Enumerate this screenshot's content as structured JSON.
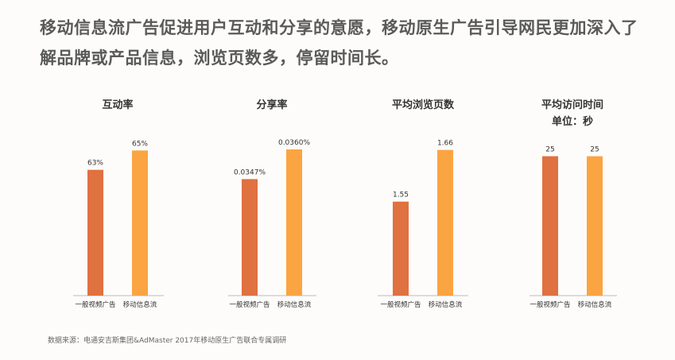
{
  "headline": "移动信息流广告促进用户互动和分享的意愿，移动原生广告引导网民更加深入了解品牌或产品信息，浏览页数多，停留时间长。",
  "source": "数据来源：电通安吉斯集团&AdMaster 2017年移动原生广告联合专属调研",
  "colors": {
    "general": "#e07140",
    "feed": "#fba442",
    "axis": "#bbbbbb"
  },
  "chart_data": [
    {
      "type": "bar",
      "title": "互动率",
      "subtitle": "",
      "categories": [
        "一般视频广告",
        "移动信息流"
      ],
      "values": [
        63,
        65
      ],
      "value_labels": [
        "63%",
        "65%"
      ],
      "ylim": [
        50,
        67
      ]
    },
    {
      "type": "bar",
      "title": "分享率",
      "subtitle": "",
      "categories": [
        "一般视频广告",
        "移动信息流"
      ],
      "values": [
        0.0347,
        0.036
      ],
      "value_labels": [
        "0.0347%",
        "0.0360%"
      ],
      "ylim": [
        0.0296,
        0.0368
      ]
    },
    {
      "type": "bar",
      "title": "平均浏览页数",
      "subtitle": "",
      "categories": [
        "一般视频广告",
        "移动信息流"
      ],
      "values": [
        1.55,
        1.66
      ],
      "value_labels": [
        "1.55",
        "1.66"
      ],
      "ylim": [
        1.35,
        1.7
      ]
    },
    {
      "type": "bar",
      "title": "平均访问时间",
      "subtitle": "单位：秒",
      "categories": [
        "一般视频广告",
        "移动信息流"
      ],
      "values": [
        25,
        25
      ],
      "value_labels": [
        "25",
        "25"
      ],
      "ylim": [
        0,
        29.5
      ]
    }
  ]
}
